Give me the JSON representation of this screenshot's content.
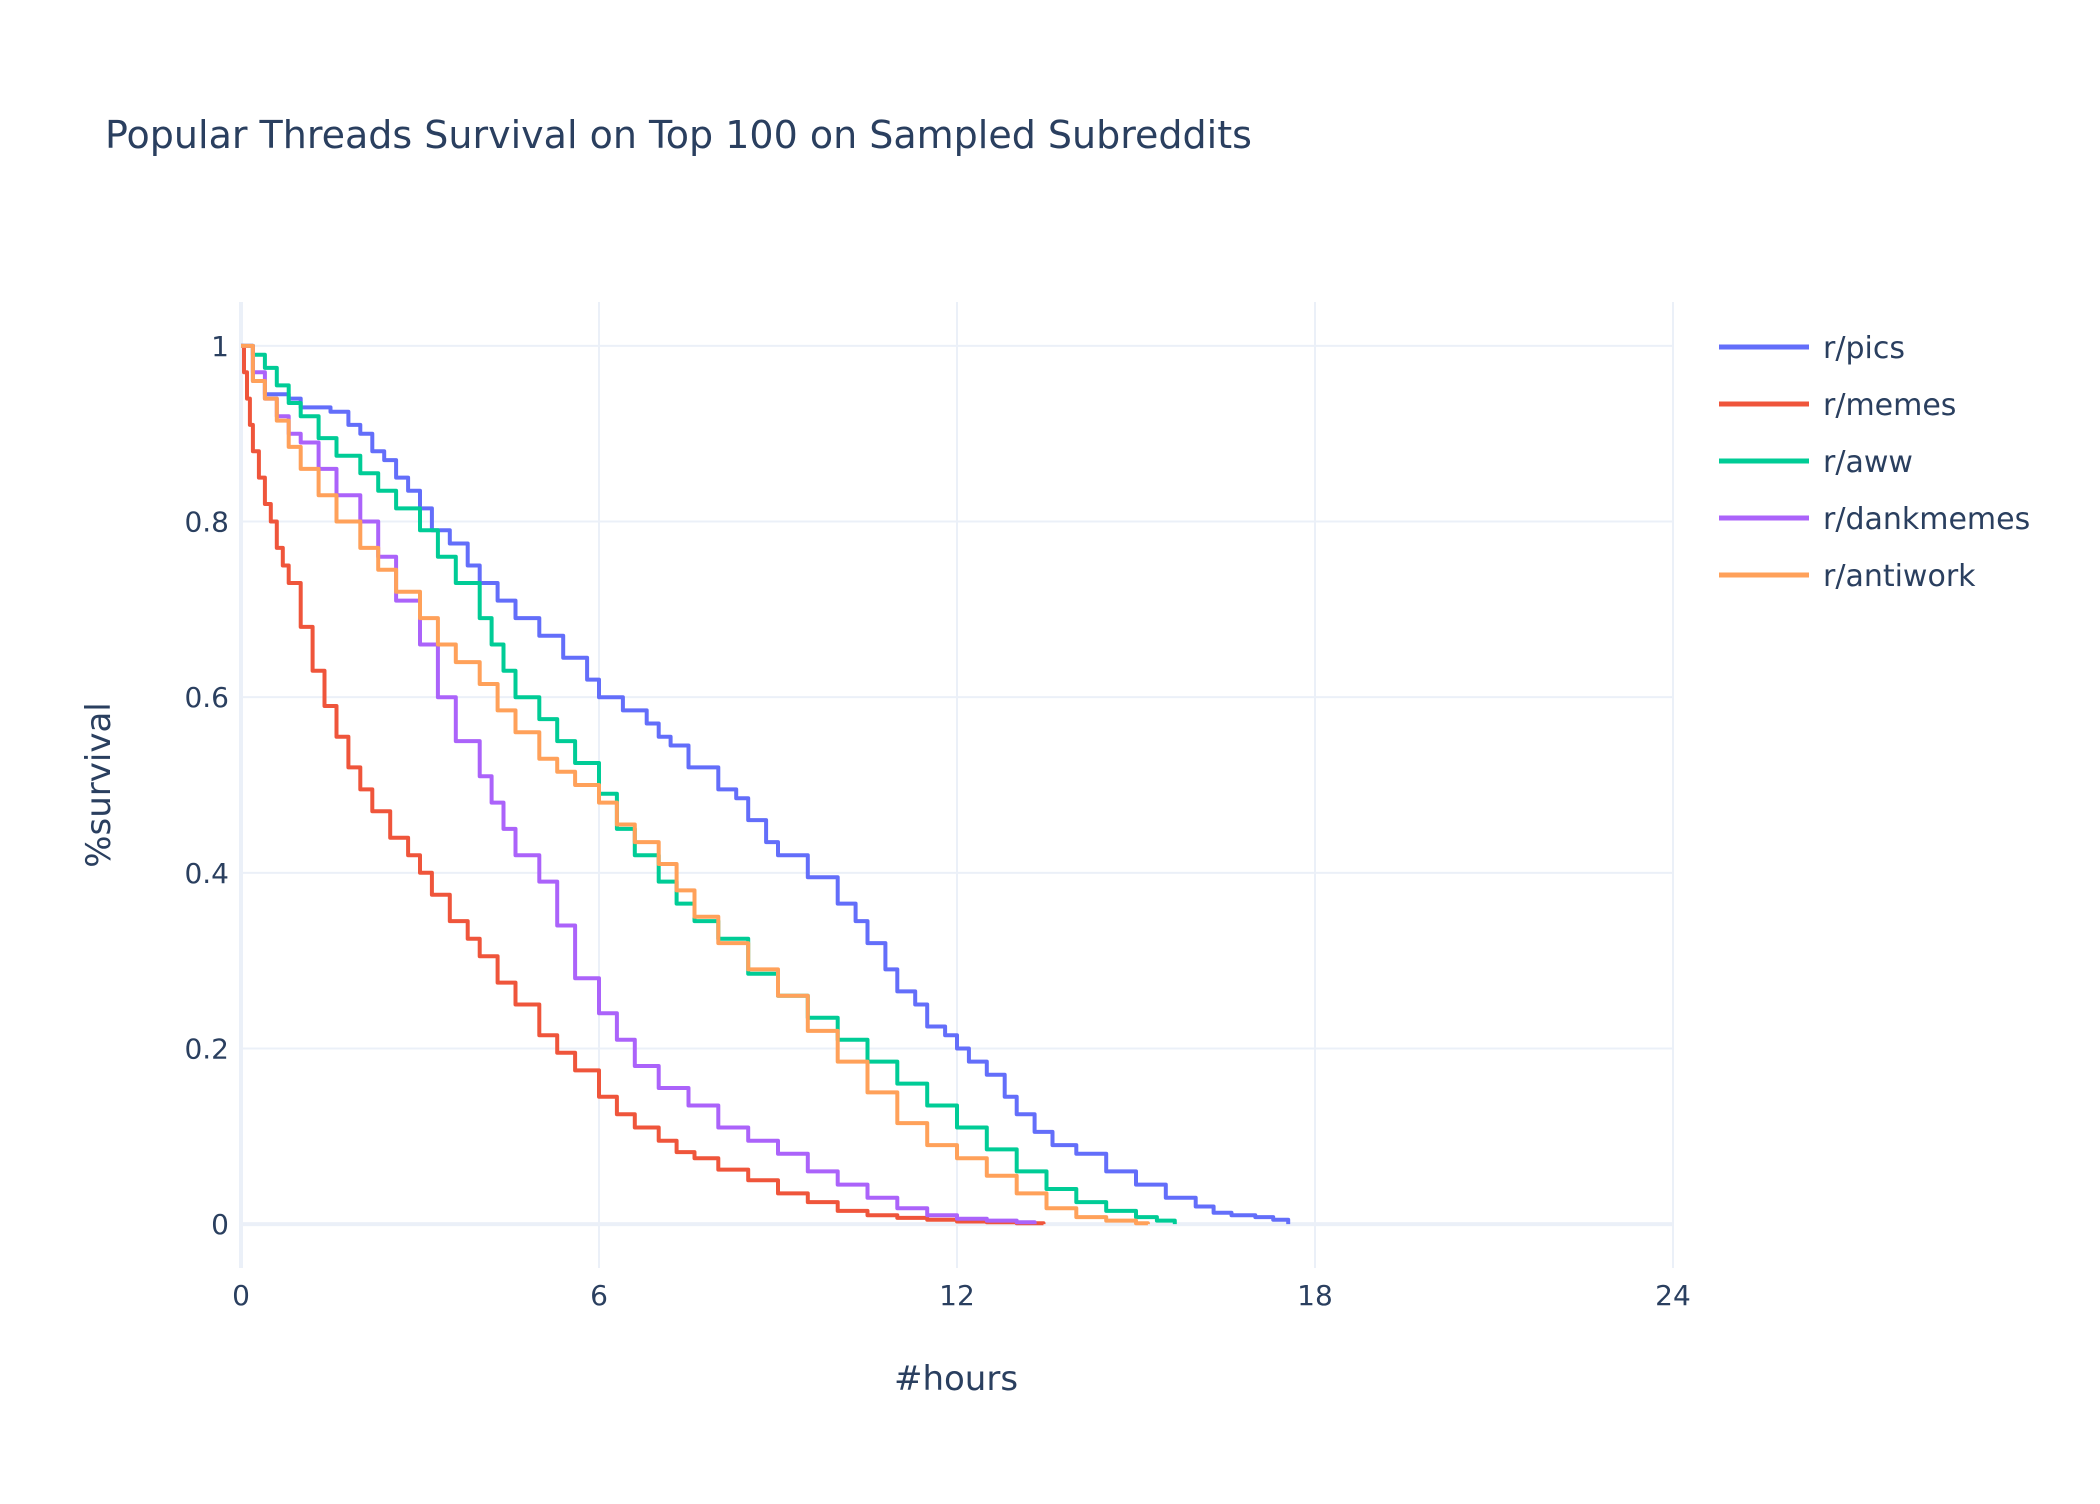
{
  "chart_data": {
    "type": "line",
    "title": "Popular Threads Survival on Top 100 on Sampled Subreddits",
    "xlabel": "#hours",
    "ylabel": "%survival",
    "xlim": [
      0,
      24
    ],
    "ylim": [
      -0.05,
      1.05
    ],
    "x_ticks": [
      0,
      6,
      12,
      18,
      24
    ],
    "y_ticks": [
      0,
      0.2,
      0.4,
      0.6,
      0.8,
      1
    ],
    "x_tick_labels": [
      "0",
      "6",
      "12",
      "18",
      "24"
    ],
    "y_tick_labels": [
      "0",
      "0.2",
      "0.4",
      "0.6",
      "0.8",
      "1"
    ],
    "grid": true,
    "legend_position": "top-right",
    "series": [
      {
        "name": "r/pics",
        "color": "#636efa",
        "x": [
          0,
          0.2,
          0.4,
          0.8,
          1.0,
          1.5,
          1.8,
          2.0,
          2.2,
          2.4,
          2.6,
          2.8,
          3.0,
          3.2,
          3.5,
          3.8,
          4.0,
          4.3,
          4.6,
          5.0,
          5.4,
          5.8,
          6.0,
          6.4,
          6.8,
          7.0,
          7.2,
          7.5,
          8.0,
          8.3,
          8.5,
          8.8,
          9.0,
          9.5,
          10.0,
          10.3,
          10.5,
          10.8,
          11.0,
          11.3,
          11.5,
          11.8,
          12.0,
          12.2,
          12.5,
          12.8,
          13.0,
          13.3,
          13.6,
          14.0,
          14.5,
          15.0,
          15.5,
          16.0,
          16.3,
          16.6,
          17.0,
          17.3,
          17.55
        ],
        "y": [
          1.0,
          0.96,
          0.945,
          0.94,
          0.93,
          0.925,
          0.91,
          0.9,
          0.88,
          0.87,
          0.85,
          0.835,
          0.815,
          0.79,
          0.775,
          0.75,
          0.73,
          0.71,
          0.69,
          0.67,
          0.645,
          0.62,
          0.6,
          0.585,
          0.57,
          0.555,
          0.545,
          0.52,
          0.495,
          0.485,
          0.46,
          0.435,
          0.42,
          0.395,
          0.365,
          0.345,
          0.32,
          0.29,
          0.265,
          0.25,
          0.225,
          0.215,
          0.2,
          0.185,
          0.17,
          0.145,
          0.125,
          0.105,
          0.09,
          0.08,
          0.06,
          0.045,
          0.03,
          0.02,
          0.013,
          0.01,
          0.008,
          0.005,
          0.0
        ]
      },
      {
        "name": "r/memes",
        "color": "#ef553b",
        "x": [
          0,
          0.05,
          0.1,
          0.15,
          0.2,
          0.3,
          0.4,
          0.5,
          0.6,
          0.7,
          0.8,
          1.0,
          1.2,
          1.4,
          1.6,
          1.8,
          2.0,
          2.2,
          2.5,
          2.8,
          3.0,
          3.2,
          3.5,
          3.8,
          4.0,
          4.3,
          4.6,
          5.0,
          5.3,
          5.6,
          6.0,
          6.3,
          6.6,
          7.0,
          7.3,
          7.6,
          8.0,
          8.5,
          9.0,
          9.5,
          10.0,
          10.5,
          11.0,
          11.5,
          12.0,
          12.5,
          13.0,
          13.45
        ],
        "y": [
          1.0,
          0.97,
          0.94,
          0.91,
          0.88,
          0.85,
          0.82,
          0.8,
          0.77,
          0.75,
          0.73,
          0.68,
          0.63,
          0.59,
          0.555,
          0.52,
          0.495,
          0.47,
          0.44,
          0.42,
          0.4,
          0.375,
          0.345,
          0.325,
          0.305,
          0.275,
          0.25,
          0.215,
          0.195,
          0.175,
          0.145,
          0.125,
          0.11,
          0.095,
          0.082,
          0.075,
          0.062,
          0.05,
          0.035,
          0.025,
          0.015,
          0.01,
          0.007,
          0.005,
          0.003,
          0.002,
          0.001,
          0.0
        ]
      },
      {
        "name": "r/aww",
        "color": "#00cc96",
        "x": [
          0,
          0.2,
          0.4,
          0.6,
          0.8,
          1.0,
          1.3,
          1.6,
          2.0,
          2.3,
          2.6,
          3.0,
          3.3,
          3.6,
          4.0,
          4.2,
          4.4,
          4.6,
          5.0,
          5.3,
          5.6,
          6.0,
          6.3,
          6.6,
          7.0,
          7.3,
          7.6,
          8.0,
          8.5,
          9.0,
          9.5,
          10.0,
          10.5,
          11.0,
          11.5,
          12.0,
          12.5,
          13.0,
          13.5,
          14.0,
          14.5,
          15.0,
          15.35,
          15.65
        ],
        "y": [
          1.0,
          0.99,
          0.975,
          0.955,
          0.935,
          0.92,
          0.895,
          0.875,
          0.855,
          0.835,
          0.815,
          0.79,
          0.76,
          0.73,
          0.69,
          0.66,
          0.63,
          0.6,
          0.575,
          0.55,
          0.525,
          0.49,
          0.45,
          0.42,
          0.39,
          0.365,
          0.345,
          0.325,
          0.285,
          0.26,
          0.235,
          0.21,
          0.185,
          0.16,
          0.135,
          0.11,
          0.085,
          0.06,
          0.04,
          0.025,
          0.015,
          0.008,
          0.004,
          0.0
        ]
      },
      {
        "name": "r/dankmemes",
        "color": "#ab63fa",
        "x": [
          0,
          0.2,
          0.4,
          0.6,
          0.8,
          1.0,
          1.3,
          1.6,
          2.0,
          2.3,
          2.6,
          3.0,
          3.3,
          3.6,
          4.0,
          4.2,
          4.4,
          4.6,
          5.0,
          5.3,
          5.6,
          6.0,
          6.3,
          6.6,
          7.0,
          7.5,
          8.0,
          8.5,
          9.0,
          9.5,
          10.0,
          10.5,
          11.0,
          11.5,
          12.0,
          12.5,
          13.0,
          13.3
        ],
        "y": [
          1.0,
          0.97,
          0.94,
          0.92,
          0.9,
          0.89,
          0.86,
          0.83,
          0.8,
          0.76,
          0.71,
          0.66,
          0.6,
          0.55,
          0.51,
          0.48,
          0.45,
          0.42,
          0.39,
          0.34,
          0.28,
          0.24,
          0.21,
          0.18,
          0.155,
          0.135,
          0.11,
          0.095,
          0.08,
          0.06,
          0.045,
          0.03,
          0.018,
          0.01,
          0.006,
          0.004,
          0.002,
          0.0
        ]
      },
      {
        "name": "r/antiwork",
        "color": "#ffa15a",
        "x": [
          0,
          0.2,
          0.4,
          0.6,
          0.8,
          1.0,
          1.3,
          1.6,
          2.0,
          2.3,
          2.6,
          3.0,
          3.3,
          3.6,
          4.0,
          4.3,
          4.6,
          5.0,
          5.3,
          5.6,
          6.0,
          6.3,
          6.6,
          7.0,
          7.3,
          7.6,
          8.0,
          8.5,
          9.0,
          9.5,
          10.0,
          10.5,
          11.0,
          11.5,
          12.0,
          12.5,
          13.0,
          13.5,
          14.0,
          14.5,
          15.0,
          15.2
        ],
        "y": [
          1.0,
          0.96,
          0.94,
          0.915,
          0.885,
          0.86,
          0.83,
          0.8,
          0.77,
          0.745,
          0.72,
          0.69,
          0.66,
          0.64,
          0.615,
          0.585,
          0.56,
          0.53,
          0.515,
          0.5,
          0.48,
          0.455,
          0.435,
          0.41,
          0.38,
          0.35,
          0.32,
          0.29,
          0.26,
          0.22,
          0.185,
          0.15,
          0.115,
          0.09,
          0.075,
          0.055,
          0.035,
          0.018,
          0.008,
          0.004,
          0.001,
          0.0
        ]
      }
    ]
  }
}
